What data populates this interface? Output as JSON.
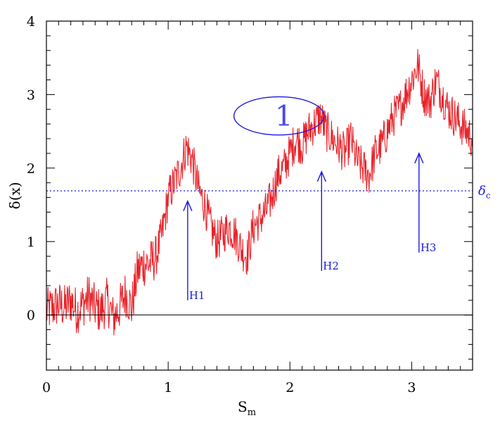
{
  "chart_data": {
    "type": "line",
    "xlabel": "S",
    "xlabel_sub": "m",
    "ylabel": "δ(x)",
    "xlim": [
      0,
      3.5
    ],
    "ylim": [
      -0.75,
      4
    ],
    "x_ticks": [
      {
        "value": 0,
        "label": "0"
      },
      {
        "value": 1,
        "label": "1"
      },
      {
        "value": 2,
        "label": "2"
      },
      {
        "value": 3,
        "label": "3"
      }
    ],
    "y_ticks": [
      {
        "value": 0,
        "label": "0"
      },
      {
        "value": 1,
        "label": "1"
      },
      {
        "value": 2,
        "label": "2"
      },
      {
        "value": 3,
        "label": "3"
      },
      {
        "value": 4,
        "label": "4"
      }
    ],
    "grid": false,
    "colors": {
      "series": "#e8232a",
      "annotation": "#1a1adf",
      "zero_line": "#000000"
    },
    "series": [
      {
        "x": [
          0.0,
          0.05,
          0.1,
          0.15,
          0.2,
          0.25,
          0.3,
          0.35,
          0.4,
          0.45,
          0.5,
          0.55,
          0.6,
          0.65,
          0.7,
          0.75,
          0.8,
          0.85,
          0.9,
          0.95,
          1.0,
          1.05,
          1.1,
          1.15,
          1.2,
          1.25,
          1.3,
          1.35,
          1.4,
          1.45,
          1.5,
          1.55,
          1.6,
          1.65,
          1.7,
          1.75,
          1.8,
          1.85,
          1.9,
          1.95,
          2.0,
          2.05,
          2.1,
          2.15,
          2.2,
          2.25,
          2.3,
          2.35,
          2.4,
          2.45,
          2.5,
          2.55,
          2.6,
          2.65,
          2.7,
          2.75,
          2.8,
          2.85,
          2.9,
          2.95,
          3.0,
          3.05,
          3.1,
          3.15,
          3.2,
          3.25,
          3.3,
          3.35,
          3.4,
          3.45,
          3.5
        ],
        "y": [
          0.05,
          0.1,
          0.15,
          0.1,
          0.2,
          0.05,
          0.15,
          0.25,
          0.1,
          0.05,
          0.2,
          -0.05,
          0.1,
          0.3,
          0.1,
          0.6,
          0.7,
          0.7,
          0.8,
          1.1,
          1.6,
          1.8,
          2.0,
          2.3,
          2.1,
          1.7,
          1.5,
          1.2,
          1.0,
          1.1,
          1.2,
          1.1,
          0.9,
          0.8,
          1.2,
          1.3,
          1.4,
          1.6,
          1.9,
          2.0,
          2.2,
          2.4,
          2.3,
          2.5,
          2.6,
          2.7,
          2.5,
          2.4,
          2.3,
          2.2,
          2.4,
          2.1,
          2.0,
          1.9,
          2.2,
          2.3,
          2.5,
          2.7,
          2.8,
          3.0,
          3.2,
          3.4,
          3.0,
          2.9,
          3.2,
          3.0,
          2.8,
          2.7,
          2.6,
          2.5,
          2.4
        ]
      }
    ],
    "reference_lines": [
      {
        "y": 1.69,
        "style": "dotted",
        "label": "δ",
        "label_sub": "c"
      },
      {
        "y": 0,
        "style": "solid"
      }
    ],
    "annotations": [
      {
        "label": "H1",
        "x": 1.16,
        "y_from": 0.2,
        "y_to": 1.55
      },
      {
        "label": "H2",
        "x": 2.26,
        "y_from": 0.6,
        "y_to": 1.95
      },
      {
        "label": "H3",
        "x": 3.06,
        "y_from": 0.85,
        "y_to": 2.2
      }
    ],
    "highlight": {
      "label": "1",
      "cx": 1.91,
      "cy": 2.71,
      "rx": 0.37,
      "ry": 0.26
    }
  }
}
